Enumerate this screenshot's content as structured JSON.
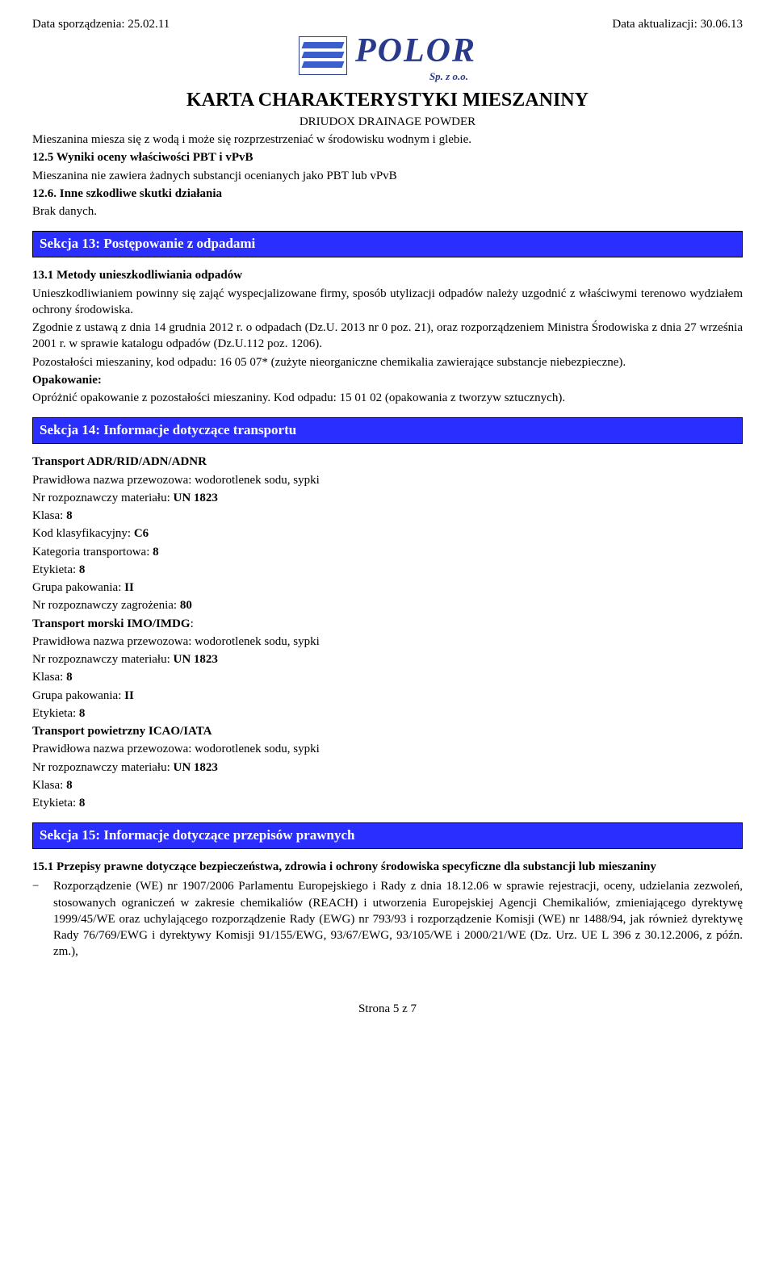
{
  "header": {
    "date_left": "Data sporządzenia: 25.02.11",
    "date_right": "Data aktualizacji: 30.06.13",
    "logo_text": "POLOR",
    "logo_sub": "Sp. z o.o.",
    "karta_title": "KARTA CHARAKTERYSTYKI MIESZANINY",
    "driudox": "DRIUDOX DRAINAGE POWDER"
  },
  "intro": {
    "line1": "Mieszanina miesza się z wodą i może się rozprzestrzeniać w środowisku wodnym i glebie.",
    "h125": "12.5 Wyniki oceny właściwości PBT i vPvB",
    "l125": "Mieszanina nie zawiera żadnych substancji ocenianych jako PBT lub vPvB",
    "h126": "12.6. Inne szkodliwe skutki działania",
    "l126": "Brak danych."
  },
  "section13": {
    "title": "Sekcja 13: Postępowanie z odpadami",
    "h131": "13.1 Metody unieszkodliwiania odpadów",
    "p1": "Unieszkodliwianiem powinny się zająć wyspecjalizowane firmy, sposób utylizacji odpadów należy uzgodnić z właściwymi terenowo wydziałem ochrony środowiska.",
    "p2": "Zgodnie z ustawą  z dnia 14 grudnia 2012 r. o odpadach (Dz.U. 2013 nr 0 poz. 21), oraz rozporządzeniem Ministra Środowiska z dnia 27 września 2001 r. w sprawie katalogu odpadów (Dz.U.112 poz. 1206).",
    "p3": "Pozostałości mieszaniny, kod odpadu: 16 05 07* (zużyte nieorganiczne chemikalia zawierające substancje niebezpieczne).",
    "opak_h": "Opakowanie:",
    "opak_t": "Opróżnić opakowanie z pozostałości mieszaniny. Kod odpadu: 15 01 02 (opakowania z tworzyw sztucznych)."
  },
  "section14": {
    "title": "Sekcja 14: Informacje dotyczące transportu",
    "adr_h": "Transport ADR/RID/ADN/ADNR",
    "nazwa_l": "Prawidłowa nazwa przewozowa: wodorotlenek sodu, sypki",
    "nr_l_pre": "Nr rozpoznawczy materiału: ",
    "nr_l_val": "UN 1823",
    "klasa_pre": "Klasa: ",
    "klasa_val": "8",
    "kod_pre": "Kod klasyfikacyjny: ",
    "kod_val": "C6",
    "kat_pre": "Kategoria transportowa: ",
    "kat_val": "8",
    "etyk_pre": "Etykieta: ",
    "etyk_val": "8",
    "grupa_pre": "Grupa pakowania: ",
    "grupa_val": "II",
    "zagroz_pre": "Nr rozpoznawczy zagrożenia: ",
    "zagroz_val": "80",
    "imo_h": "Transport morski IMO/IMDG",
    "icao_h": "Transport powietrzny ICAO/IATA"
  },
  "section15": {
    "title": "Sekcja 15: Informacje dotyczące przepisów prawnych",
    "h151": "15.1 Przepisy prawne dotyczące bezpieczeństwa, zdrowia i ochrony środowiska specyficzne dla substancji lub mieszaniny",
    "bullet_mark": "−",
    "bullet_text": "Rozporządzenie (WE) nr 1907/2006 Parlamentu Europejskiego i Rady z dnia 18.12.06 w sprawie rejestracji, oceny, udzielania zezwoleń, stosowanych ograniczeń w zakresie chemikaliów (REACH) i utworzenia Europejskiej Agencji Chemikaliów, zmieniającego dyrektywę 1999/45/WE oraz uchylającego rozporządzenie Rady (EWG) nr 793/93 i rozporządzenie Komisji (WE) nr 1488/94, jak również dyrektywę Rady 76/769/EWG i dyrektywy Komisji 91/155/EWG, 93/67/EWG, 93/105/WE i 2000/21/WE (Dz. Urz. UE L 396 z 30.12.2006, z późn. zm.),"
  },
  "footer": {
    "page": "Strona 5 z 7"
  },
  "colors": {
    "section_bg": "#2a2fff",
    "section_fg": "#ffffff",
    "logo_color": "#2a3a8a",
    "text": "#000000",
    "bg": "#ffffff"
  }
}
